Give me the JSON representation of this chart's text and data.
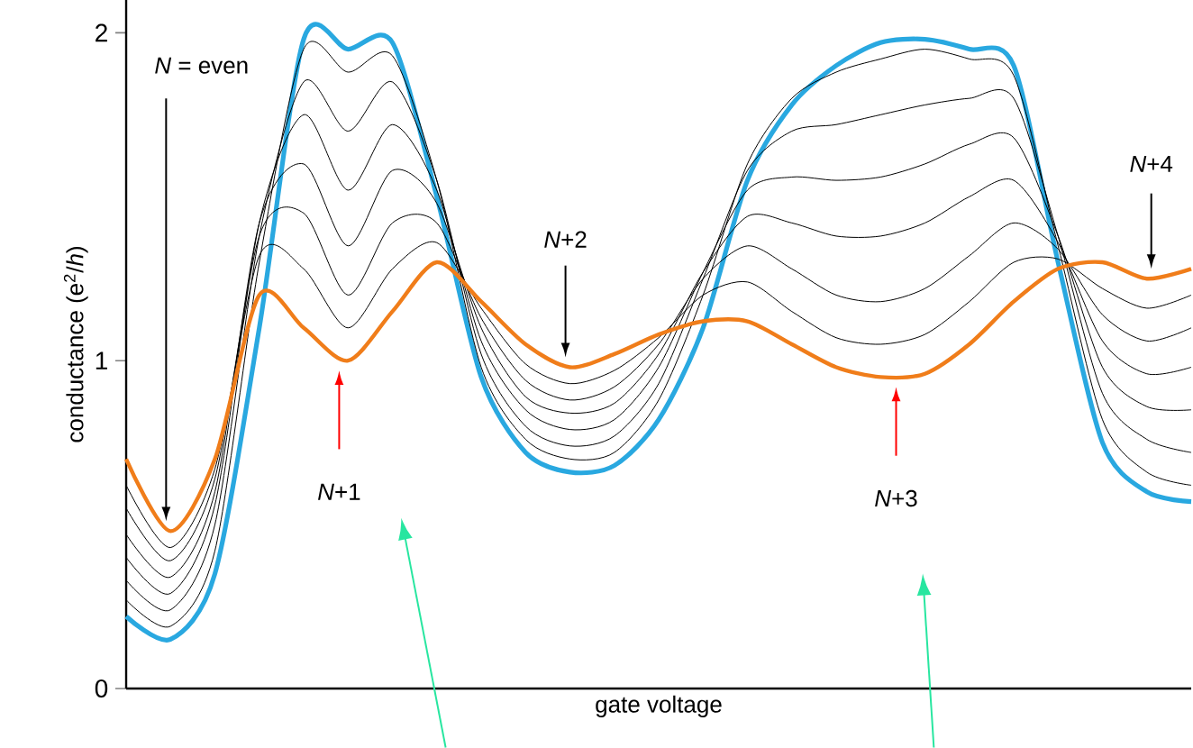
{
  "chart_data": {
    "type": "line",
    "xlabel": "gate voltage",
    "ylabel": "conductance (e$^{2}$/*h*)",
    "categories": [
      null,
      null,
      null,
      null,
      null,
      null,
      null,
      null,
      null,
      null,
      null,
      null,
      null,
      null,
      null,
      null,
      null,
      null,
      null,
      null,
      null,
      null,
      null,
      null,
      null
    ],
    "ylim": [
      0,
      2.1
    ],
    "yticks": [
      0,
      1,
      2
    ],
    "grid": false,
    "series": [
      {
        "color": "#29a8e0",
        "values": [
          0.22,
          0.15,
          0.35,
          1.1,
          1.98,
          1.95,
          1.97,
          1.5,
          0.95,
          0.72,
          0.66,
          0.68,
          0.82,
          1.1,
          1.55,
          1.78,
          1.9,
          1.97,
          1.98,
          1.95,
          1.9,
          1.3,
          0.75,
          0.6,
          0.57
        ]
      },
      {
        "color": "#000000",
        "values": [
          0.27,
          0.19,
          0.42,
          1.3,
          1.95,
          1.88,
          1.93,
          1.55,
          0.98,
          0.76,
          0.7,
          0.72,
          0.88,
          1.2,
          1.6,
          1.8,
          1.88,
          1.92,
          1.95,
          1.92,
          1.87,
          1.35,
          0.82,
          0.66,
          0.62
        ]
      },
      {
        "color": "#000000",
        "values": [
          0.33,
          0.24,
          0.5,
          1.38,
          1.85,
          1.7,
          1.85,
          1.55,
          1.02,
          0.8,
          0.74,
          0.77,
          0.93,
          1.25,
          1.58,
          1.7,
          1.72,
          1.75,
          1.78,
          1.8,
          1.8,
          1.38,
          0.9,
          0.76,
          0.72
        ]
      },
      {
        "color": "#000000",
        "values": [
          0.4,
          0.29,
          0.56,
          1.42,
          1.75,
          1.52,
          1.72,
          1.52,
          1.06,
          0.85,
          0.79,
          0.82,
          0.98,
          1.27,
          1.52,
          1.56,
          1.55,
          1.56,
          1.6,
          1.66,
          1.68,
          1.38,
          0.98,
          0.86,
          0.85
        ]
      },
      {
        "color": "#000000",
        "values": [
          0.47,
          0.34,
          0.6,
          1.42,
          1.6,
          1.35,
          1.58,
          1.48,
          1.1,
          0.89,
          0.84,
          0.87,
          1.02,
          1.27,
          1.44,
          1.42,
          1.38,
          1.38,
          1.42,
          1.5,
          1.55,
          1.36,
          1.06,
          0.96,
          0.98
        ]
      },
      {
        "color": "#000000",
        "values": [
          0.55,
          0.39,
          0.64,
          1.38,
          1.45,
          1.2,
          1.42,
          1.42,
          1.13,
          0.94,
          0.88,
          0.92,
          1.05,
          1.25,
          1.35,
          1.28,
          1.2,
          1.18,
          1.22,
          1.32,
          1.42,
          1.34,
          1.14,
          1.06,
          1.1
        ]
      },
      {
        "color": "#000000",
        "values": [
          0.62,
          0.43,
          0.67,
          1.32,
          1.28,
          1.1,
          1.28,
          1.36,
          1.16,
          0.99,
          0.93,
          0.97,
          1.07,
          1.2,
          1.24,
          1.15,
          1.07,
          1.05,
          1.08,
          1.18,
          1.3,
          1.31,
          1.22,
          1.16,
          1.2
        ]
      },
      {
        "color": "#f07d1a",
        "values": [
          0.7,
          0.48,
          0.7,
          1.2,
          1.1,
          1.0,
          1.15,
          1.3,
          1.18,
          1.05,
          0.98,
          1.02,
          1.08,
          1.12,
          1.12,
          1.05,
          0.98,
          0.95,
          0.96,
          1.05,
          1.18,
          1.28,
          1.3,
          1.25,
          1.28
        ]
      }
    ],
    "annotations": [
      "*N* = even",
      "*N*+1",
      "*N*+2",
      "*N*+3",
      "*N*+4"
    ]
  }
}
